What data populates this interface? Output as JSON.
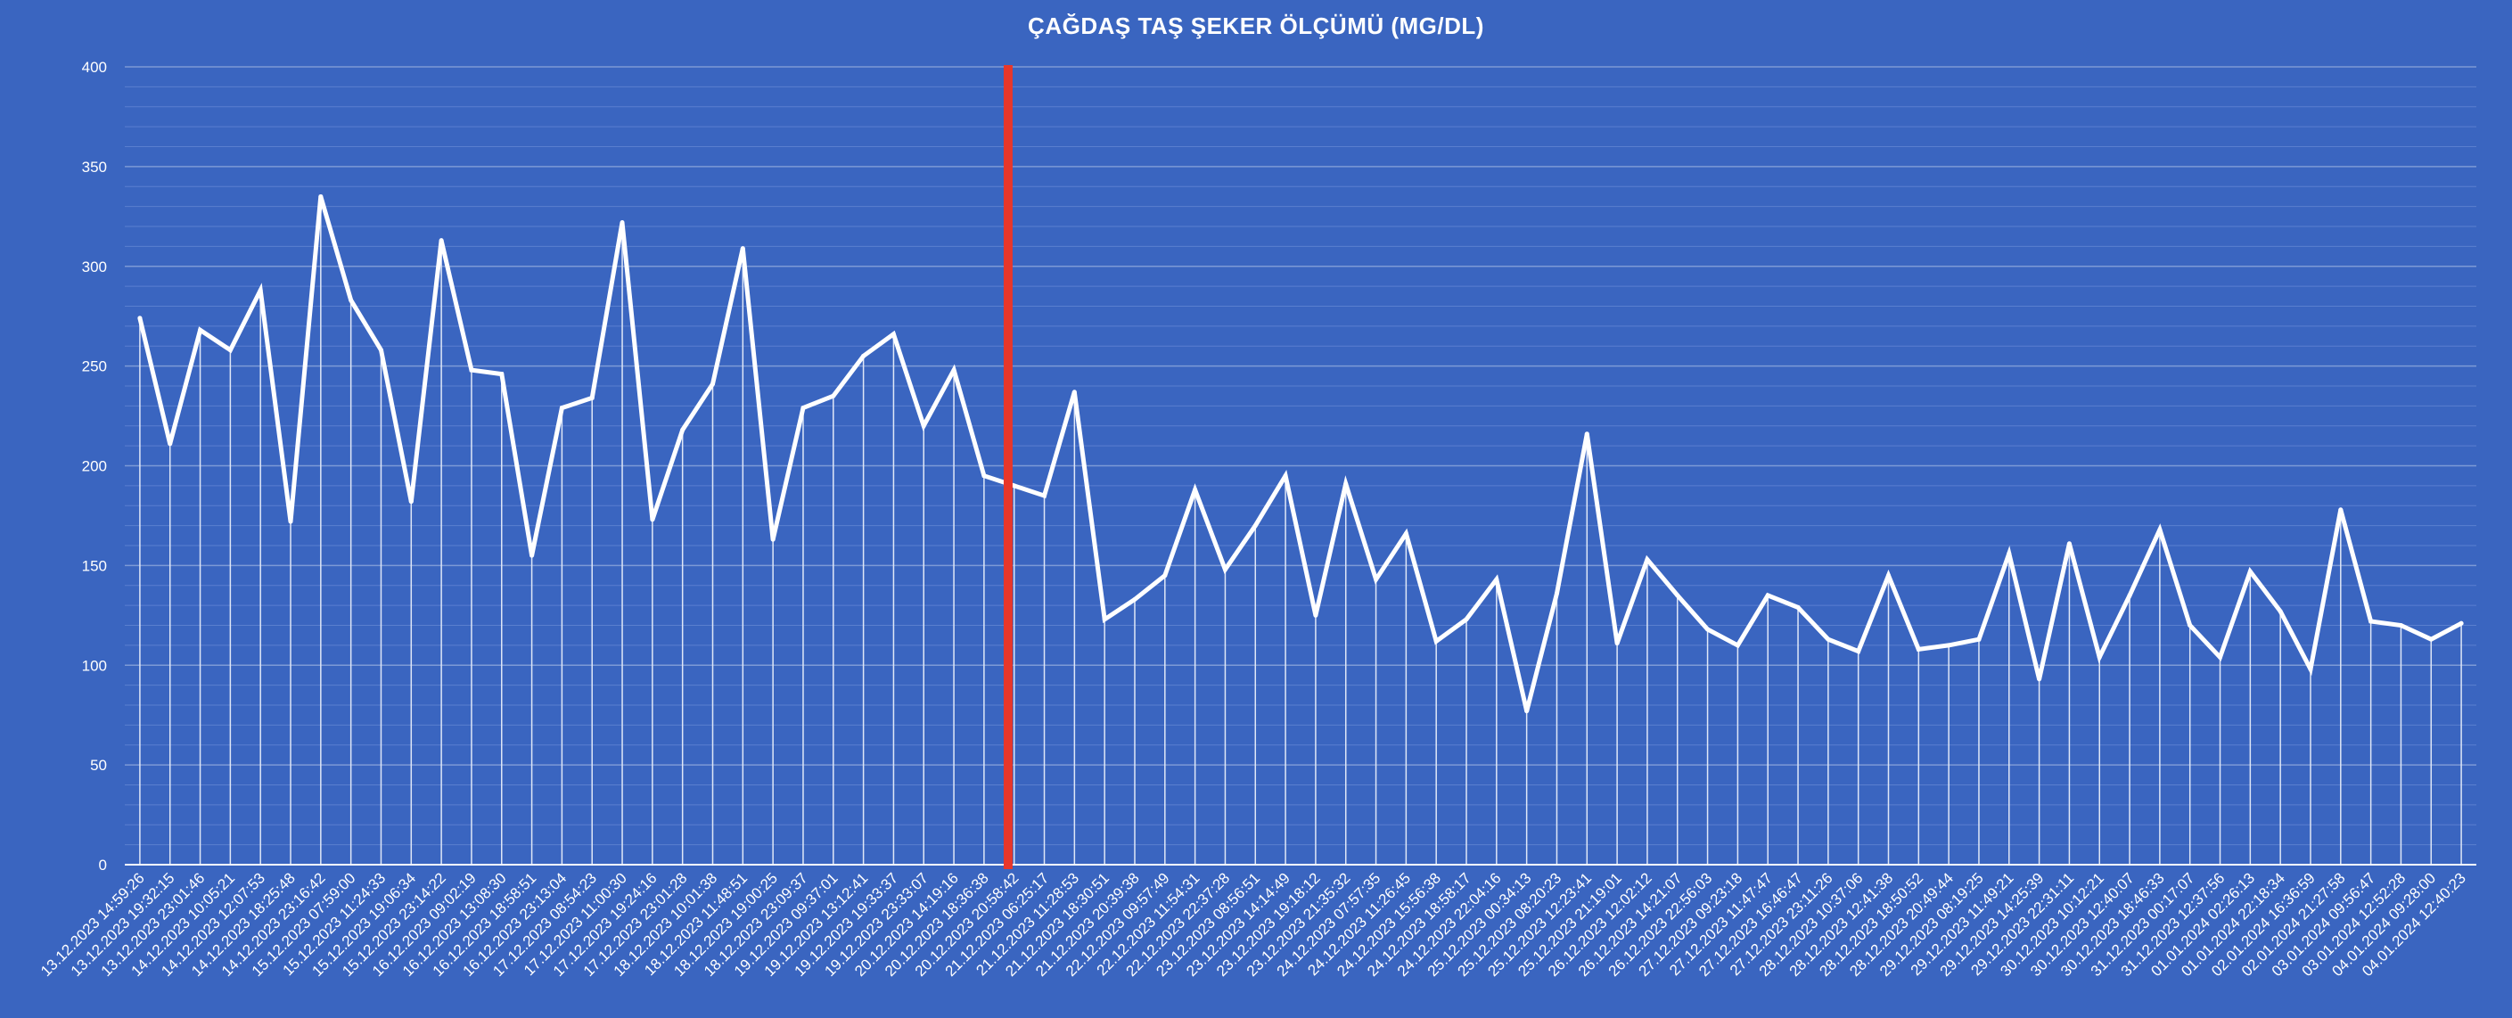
{
  "chart_data": {
    "type": "line",
    "title": "ÇAĞDAŞ TAŞ ŞEKER ÖLÇÜMÜ (MG/DL)",
    "xlabel": "",
    "ylabel": "",
    "ylim": [
      0,
      400
    ],
    "yticks": [
      0,
      50,
      100,
      150,
      200,
      250,
      300,
      350,
      400
    ],
    "grid": true,
    "legend": "none",
    "colors": {
      "background": "#3a65c0",
      "line": "#ffffff",
      "marker_line": "#e8372a",
      "grid": "#7d9ad6"
    },
    "marker_after_category": "20.12.2023 18:36:38",
    "categories": [
      "13.12.2023 14:59:26",
      "13.12.2023 19:32:15",
      "13.12.2023 23:01:46",
      "14.12.2023 10:05:21",
      "14.12.2023 12:07:53",
      "14.12.2023 18:25:48",
      "14.12.2023 23:16:42",
      "15.12.2023 07:59:00",
      "15.12.2023 11:24:33",
      "15.12.2023 19:06:34",
      "15.12.2023 23:14:22",
      "16.12.2023 09:02:19",
      "16.12.2023 13:08:30",
      "16.12.2023 18:58:51",
      "16.12.2023 23:13:04",
      "17.12.2023 08:54:23",
      "17.12.2023 11:00:30",
      "17.12.2023 19:24:16",
      "17.12.2023 23:01:28",
      "18.12.2023 10:01:38",
      "18.12.2023 11:48:51",
      "18.12.2023 19:00:25",
      "18.12.2023 23:09:37",
      "19.12.2023 09:37:01",
      "19.12.2023 13:12:41",
      "19.12.2023 19:33:37",
      "19.12.2023 23:33:07",
      "20.12.2023 14:19:16",
      "20.12.2023 18:36:38",
      "20.12.2023 20:58:42",
      "21.12.2023 06:25:17",
      "21.12.2023 11:28:53",
      "21.12.2023 18:30:51",
      "21.12.2023 20:39:38",
      "22.12.2023 09:57:49",
      "22.12.2023 11:54:31",
      "22.12.2023 22:37:28",
      "23.12.2023 08:56:51",
      "23.12.2023 14:14:49",
      "23.12.2023 19:18:12",
      "23.12.2023 21:35:32",
      "24.12.2023 07:57:35",
      "24.12.2023 11:26:45",
      "24.12.2023 15:56:38",
      "24.12.2023 18:58:17",
      "24.12.2023 22:04:16",
      "25.12.2023 00:34:13",
      "25.12.2023 08:20:23",
      "25.12.2023 12:23:41",
      "25.12.2023 21:19:01",
      "26.12.2023 12:02:12",
      "26.12.2023 14:21:07",
      "26.12.2023 22:56:03",
      "27.12.2023 09:23:18",
      "27.12.2023 11:47:47",
      "27.12.2023 16:46:47",
      "27.12.2023 23:11:26",
      "28.12.2023 10:37:06",
      "28.12.2023 12:41:38",
      "28.12.2023 18:50:52",
      "28.12.2023 20:49:44",
      "29.12.2023 08:19:25",
      "29.12.2023 11:49:21",
      "29.12.2023 14:25:39",
      "29.12.2023 22:31:11",
      "30.12.2023 10:12:21",
      "30.12.2023 12:40:07",
      "30.12.2023 18:46:33",
      "31.12.2023 00:17:07",
      "31.12.2023 12:37:56",
      "01.01.2024 02:26:13",
      "01.01.2024 22:18:34",
      "02.01.2024 16:36:59",
      "02.01.2024 21:27:58",
      "03.01.2024 09:56:47",
      "03.01.2024 12:52:28",
      "04.01.2024 09:28:00",
      "04.01.2024 12:40:23"
    ],
    "values": [
      274,
      211,
      268,
      258,
      288,
      172,
      335,
      283,
      258,
      182,
      313,
      248,
      246,
      155,
      229,
      234,
      322,
      173,
      218,
      241,
      309,
      163,
      229,
      235,
      255,
      266,
      220,
      248,
      195,
      190,
      185,
      237,
      123,
      133,
      145,
      188,
      148,
      170,
      195,
      125,
      191,
      143,
      166,
      112,
      123,
      143,
      77,
      136,
      216,
      111,
      153,
      135,
      118,
      110,
      135,
      129,
      113,
      107,
      145,
      108,
      110,
      113,
      156,
      93,
      161,
      104,
      135,
      168,
      120,
      104,
      147,
      127,
      98,
      178,
      122,
      120,
      113,
      121
    ]
  }
}
